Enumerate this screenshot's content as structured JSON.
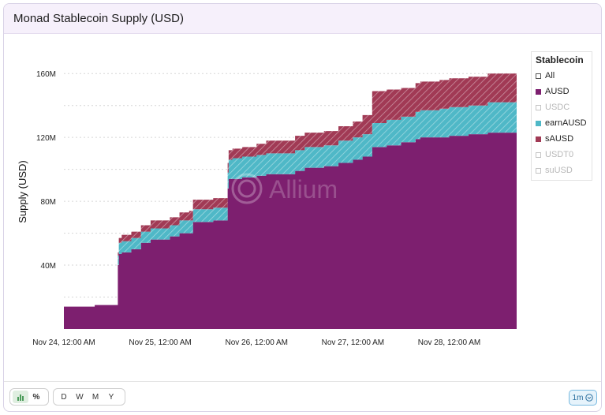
{
  "header": {
    "title": "Monad Stablecoin Supply (USD)"
  },
  "watermark": "Allium",
  "chart_data": {
    "type": "area",
    "stacked": true,
    "title": "Monad Stablecoin Supply (USD)",
    "xlabel": "",
    "ylabel": "Supply (USD)",
    "ylim": [
      0,
      170
    ],
    "y_unit": "M",
    "xlim": [
      0,
      4.7
    ],
    "yticks": [
      {
        "v": 40,
        "label": "40M"
      },
      {
        "v": 80,
        "label": "80M"
      },
      {
        "v": 120,
        "label": "120M"
      },
      {
        "v": 160,
        "label": "160M"
      }
    ],
    "xticks": [
      {
        "v": 0,
        "label": "Nov 24, 12:00 AM"
      },
      {
        "v": 1,
        "label": "Nov 25, 12:00 AM"
      },
      {
        "v": 2,
        "label": "Nov 26, 12:00 AM"
      },
      {
        "v": 3,
        "label": "Nov 27, 12:00 AM"
      },
      {
        "v": 4,
        "label": "Nov 28, 12:00 AM"
      }
    ],
    "x": [
      0,
      0.3,
      0.32,
      0.55,
      0.56,
      0.57,
      0.6,
      0.7,
      0.8,
      0.9,
      1.0,
      1.1,
      1.2,
      1.3,
      1.34,
      1.5,
      1.55,
      1.69,
      1.7,
      1.71,
      1.75,
      1.85,
      2.0,
      2.1,
      2.25,
      2.4,
      2.5,
      2.65,
      2.7,
      2.85,
      3.0,
      3.1,
      3.2,
      3.35,
      3.5,
      3.65,
      3.7,
      3.9,
      4.0,
      4.2,
      4.4,
      4.7
    ],
    "series": [
      {
        "name": "AUSD",
        "color": "#7d1f6f",
        "values": [
          14,
          14,
          15,
          15,
          40,
          47,
          48,
          50,
          54,
          56,
          56,
          58,
          60,
          60,
          67,
          67,
          68,
          68,
          88,
          94,
          94,
          95,
          96,
          97,
          97,
          99,
          101,
          101,
          102,
          104,
          106,
          108,
          114,
          115,
          117,
          119,
          120,
          120,
          121,
          122,
          123,
          124
        ]
      },
      {
        "name": "earnAUSD",
        "color": "#4fb8c7",
        "hatched": true,
        "values": [
          0,
          0,
          0,
          0,
          6,
          7,
          7,
          7,
          7,
          7,
          7,
          7,
          8,
          8,
          8,
          8,
          8,
          8,
          10,
          12,
          13,
          13,
          13,
          13,
          13,
          13,
          13,
          13,
          13,
          14,
          14,
          14,
          15,
          16,
          16,
          17,
          17,
          18,
          18,
          18,
          19,
          19
        ]
      },
      {
        "name": "sAUSD",
        "color": "#a13a55",
        "hatched": true,
        "values": [
          0,
          0,
          0,
          0,
          2,
          3,
          4,
          4,
          4,
          5,
          5,
          5,
          5,
          6,
          6,
          6,
          6,
          6,
          6,
          6,
          6,
          6,
          7,
          8,
          8,
          9,
          9,
          9,
          9,
          9,
          10,
          12,
          20,
          19,
          18,
          18,
          18,
          18,
          18,
          18,
          18,
          19
        ]
      }
    ]
  },
  "legend": {
    "title": "Stablecoin",
    "items": [
      {
        "label": "All",
        "color": "#ffffff",
        "state": "all"
      },
      {
        "label": "AUSD",
        "color": "#7d1f6f",
        "state": "on"
      },
      {
        "label": "USDC",
        "color": "#ffffff",
        "state": "off"
      },
      {
        "label": "earnAUSD",
        "color": "#4fb8c7",
        "state": "on"
      },
      {
        "label": "sAUSD",
        "color": "#a13a55",
        "state": "on"
      },
      {
        "label": "USDT0",
        "color": "#ffffff",
        "state": "off"
      },
      {
        "label": "suUSD",
        "color": "#ffffff",
        "state": "off"
      }
    ]
  },
  "footer": {
    "chart_type_buttons": [
      "bar-chart-icon",
      "%"
    ],
    "period_buttons": [
      "D",
      "W",
      "M",
      "Y"
    ],
    "timeframe": "1m"
  }
}
